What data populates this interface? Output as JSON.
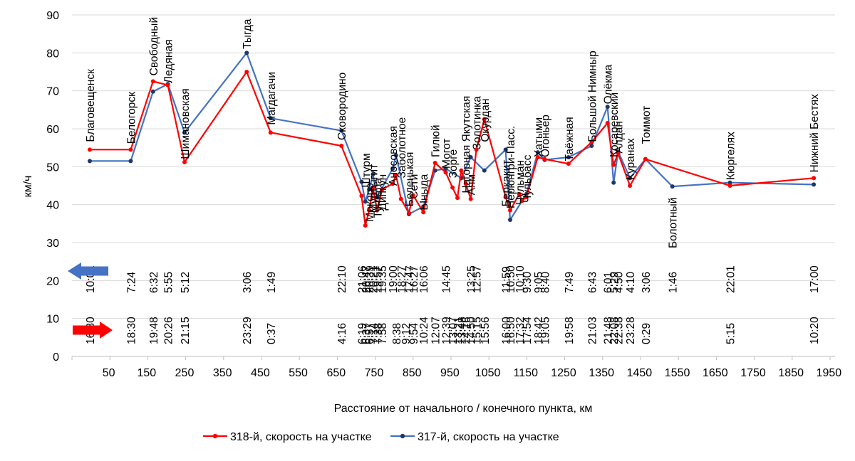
{
  "chart_data": {
    "type": "line",
    "title": "",
    "xlabel": "Расстояние от начального / конечного пункта, км",
    "ylabel": "км/ч",
    "xlim": [
      0,
      2000
    ],
    "ylim": [
      0,
      90
    ],
    "xticks": [
      50,
      150,
      250,
      350,
      450,
      550,
      650,
      750,
      850,
      950,
      1050,
      1150,
      1250,
      1350,
      1450,
      1550,
      1650,
      1750,
      1850,
      1950
    ],
    "yticks": [
      0,
      10,
      20,
      30,
      40,
      50,
      60,
      70,
      80,
      90
    ],
    "grid": "horizontal",
    "legend_position": "bottom",
    "colors": {
      "series_318": "#ff0000",
      "series_317": "#4472c4",
      "marker_317": "#1f3864",
      "grid": "#d9d9d9",
      "axis": "#bfbfbf"
    },
    "series": [
      {
        "name": "318-й, скорость на участке",
        "color": "#ff0000",
        "points": [
          [
            0,
            54.5
          ],
          [
            108,
            54.5
          ],
          [
            167,
            72.5
          ],
          [
            206,
            71.5
          ],
          [
            250,
            51.2
          ],
          [
            414,
            75
          ],
          [
            477,
            59
          ],
          [
            664,
            55.5
          ],
          [
            717,
            42.3
          ],
          [
            727,
            34.5
          ],
          [
            737,
            38.5
          ],
          [
            747,
            44.5
          ],
          [
            758,
            38.5
          ],
          [
            771,
            44
          ],
          [
            799,
            45.5
          ],
          [
            808,
            47.8
          ],
          [
            821,
            41.5
          ],
          [
            842,
            37.8
          ],
          [
            853,
            42.5
          ],
          [
            880,
            38
          ],
          [
            911,
            51
          ],
          [
            939,
            48.5
          ],
          [
            957,
            44.5
          ],
          [
            970,
            41.8
          ],
          [
            980,
            49
          ],
          [
            992,
            45.5
          ],
          [
            1005,
            41.5
          ],
          [
            1020,
            54.5
          ],
          [
            1041,
            62.5
          ],
          [
            1097,
            42
          ],
          [
            1109,
            38.5
          ],
          [
            1133,
            42.8
          ],
          [
            1140,
            41
          ],
          [
            1152,
            42
          ],
          [
            1182,
            52.5
          ],
          [
            1200,
            52
          ],
          [
            1263,
            50.8
          ],
          [
            1324,
            56.5
          ],
          [
            1366,
            61.5
          ],
          [
            1382,
            50.5
          ],
          [
            1394,
            53.5
          ],
          [
            1425,
            45
          ],
          [
            1466,
            52
          ],
          [
            1689,
            45
          ],
          [
            1910,
            47
          ]
        ]
      },
      {
        "name": "317-й, скорость на участке",
        "color": "#4472c4",
        "points": [
          [
            0,
            51.5
          ],
          [
            108,
            51.5
          ],
          [
            167,
            69.8
          ],
          [
            206,
            71.8
          ],
          [
            250,
            59
          ],
          [
            414,
            80
          ],
          [
            477,
            62.8
          ],
          [
            664,
            59.5
          ],
          [
            717,
            46
          ],
          [
            727,
            40.8
          ],
          [
            737,
            44
          ],
          [
            747,
            48
          ],
          [
            758,
            42
          ],
          [
            799,
            49.5
          ],
          [
            808,
            53
          ],
          [
            842,
            37.5
          ],
          [
            880,
            39.5
          ],
          [
            911,
            49
          ],
          [
            939,
            49.5
          ],
          [
            980,
            47
          ],
          [
            1005,
            52.5
          ],
          [
            1041,
            49
          ],
          [
            1097,
            54.5
          ],
          [
            1109,
            36
          ],
          [
            1152,
            42.8
          ],
          [
            1182,
            53.8
          ],
          [
            1200,
            51.8
          ],
          [
            1263,
            52.5
          ],
          [
            1324,
            55.5
          ],
          [
            1366,
            65.8
          ],
          [
            1382,
            45.8
          ],
          [
            1394,
            54
          ],
          [
            1425,
            47
          ],
          [
            1466,
            52
          ],
          [
            1537,
            44.8
          ],
          [
            1689,
            45.8
          ],
          [
            1910,
            45.3
          ]
        ]
      }
    ],
    "stations": [
      {
        "name": "Благовещенск",
        "x": 0,
        "y": 56.5
      },
      {
        "name": "Белогорск",
        "x": 108,
        "y": 56
      },
      {
        "name": "Свободный",
        "x": 167,
        "y": 74
      },
      {
        "name": "Ледяная",
        "x": 206,
        "y": 72
      },
      {
        "name": "Шимановская",
        "x": 250,
        "y": 52
      },
      {
        "name": "Тыгда",
        "x": 414,
        "y": 81
      },
      {
        "name": "Магдагачи",
        "x": 477,
        "y": 61
      },
      {
        "name": "Сковородино",
        "x": 664,
        "y": 57
      },
      {
        "name": "Штурм",
        "x": 727,
        "y": 44.5
      },
      {
        "name": "Мокоро",
        "x": 737,
        "y": 35.5
      },
      {
        "name": "Муртыгит",
        "x": 747,
        "y": 37.8
      },
      {
        "name": "Тунгала",
        "x": 758,
        "y": 36.5
      },
      {
        "name": "Дипкун",
        "x": 771,
        "y": 38.5
      },
      {
        "name": "Аносовская",
        "x": 799,
        "y": 45
      },
      {
        "name": "Заболотное",
        "x": 821,
        "y": 47
      },
      {
        "name": "Беленькая",
        "x": 842,
        "y": 39.5
      },
      {
        "name": "Сети",
        "x": 853,
        "y": 41.5
      },
      {
        "name": "Ыныда",
        "x": 880,
        "y": 38.5
      },
      {
        "name": "Гилюй",
        "x": 911,
        "y": 52.5
      },
      {
        "name": "Могот",
        "x": 939,
        "y": 49.5
      },
      {
        "name": "Зорге",
        "x": 957,
        "y": 47
      },
      {
        "name": "Нагорная Якутская",
        "x": 992,
        "y": 43
      },
      {
        "name": "Аям",
        "x": 1005,
        "y": 42.5
      },
      {
        "name": "Золотинка",
        "x": 1020,
        "y": 54.5
      },
      {
        "name": "Окурдан",
        "x": 1041,
        "y": 56.5
      },
      {
        "name": "Беркакит",
        "x": 1097,
        "y": 39.5
      },
      {
        "name": "Нерюнгри-Пасс.",
        "x": 1109,
        "y": 39
      },
      {
        "name": "Чульман",
        "x": 1133,
        "y": 40
      },
      {
        "name": "Чульбасс",
        "x": 1152,
        "y": 40.5
      },
      {
        "name": "Хатыми",
        "x": 1182,
        "y": 52.5
      },
      {
        "name": "Огоньер",
        "x": 1200,
        "y": 52.5
      },
      {
        "name": "Таёжная",
        "x": 1263,
        "y": 51.5
      },
      {
        "name": "Большой Нимныр",
        "x": 1324,
        "y": 56.5
      },
      {
        "name": "Олёкма",
        "x": 1366,
        "y": 66.5
      },
      {
        "name": "Косаревский",
        "x": 1382,
        "y": 52.5
      },
      {
        "name": "Алдан",
        "x": 1394,
        "y": 53.5
      },
      {
        "name": "Куранах",
        "x": 1425,
        "y": 46.5
      },
      {
        "name": "Томмот",
        "x": 1466,
        "y": 56
      },
      {
        "name": "Болотный",
        "x": 1537,
        "y": 28.5
      },
      {
        "name": "Кюргелях",
        "x": 1689,
        "y": 46.5
      },
      {
        "name": "Нижний Бестях",
        "x": 1910,
        "y": 48.5
      }
    ],
    "times_317": [
      {
        "t": "10:01",
        "x": 0
      },
      {
        "t": "7:24",
        "x": 108
      },
      {
        "t": "6:32",
        "x": 167
      },
      {
        "t": "5:55",
        "x": 206
      },
      {
        "t": "5:12",
        "x": 250
      },
      {
        "t": "3:06",
        "x": 414
      },
      {
        "t": "1:49",
        "x": 477
      },
      {
        "t": "22:10",
        "x": 664
      },
      {
        "t": "21:06",
        "x": 717
      },
      {
        "t": "20:47",
        "x": 727
      },
      {
        "t": "20:39",
        "x": 737
      },
      {
        "t": "20:21",
        "x": 747
      },
      {
        "t": "19:57",
        "x": 758
      },
      {
        "t": "19:35",
        "x": 771
      },
      {
        "t": "19:00",
        "x": 799
      },
      {
        "t": "18:27",
        "x": 821
      },
      {
        "t": "17:47",
        "x": 842
      },
      {
        "t": "16:27",
        "x": 853
      },
      {
        "t": "16:06",
        "x": 880
      },
      {
        "t": "14:45",
        "x": 939
      },
      {
        "t": "13:25",
        "x": 1005
      },
      {
        "t": "12:57",
        "x": 1020
      },
      {
        "t": "11:59",
        "x": 1097
      },
      {
        "t": "10:50",
        "x": 1109
      },
      {
        "t": "10:10",
        "x": 1133
      },
      {
        "t": "9:30",
        "x": 1152
      },
      {
        "t": "9:05",
        "x": 1182
      },
      {
        "t": "8:40",
        "x": 1200
      },
      {
        "t": "7:49",
        "x": 1263
      },
      {
        "t": "6:43",
        "x": 1324
      },
      {
        "t": "6:01",
        "x": 1366
      },
      {
        "t": "5:29",
        "x": 1382
      },
      {
        "t": "4:50",
        "x": 1394
      },
      {
        "t": "4:10",
        "x": 1425
      },
      {
        "t": "3:06",
        "x": 1466
      },
      {
        "t": "1:46",
        "x": 1537
      },
      {
        "t": "22:01",
        "x": 1689
      },
      {
        "t": "17:00",
        "x": 1910
      }
    ],
    "times_318": [
      {
        "t": "16:30",
        "x": 0
      },
      {
        "t": "18:30",
        "x": 108
      },
      {
        "t": "19:48",
        "x": 167
      },
      {
        "t": "20:26",
        "x": 206
      },
      {
        "t": "21:15",
        "x": 250
      },
      {
        "t": "23:29",
        "x": 414
      },
      {
        "t": "0:37",
        "x": 477
      },
      {
        "t": "4:16",
        "x": 664
      },
      {
        "t": "6:19",
        "x": 717
      },
      {
        "t": "6:37",
        "x": 727
      },
      {
        "t": "6:57",
        "x": 737
      },
      {
        "t": "7:14",
        "x": 747
      },
      {
        "t": "7:38",
        "x": 758
      },
      {
        "t": "7:58",
        "x": 771
      },
      {
        "t": "8:38",
        "x": 808
      },
      {
        "t": "9:12",
        "x": 833
      },
      {
        "t": "9:54",
        "x": 853
      },
      {
        "t": "10:24",
        "x": 880
      },
      {
        "t": "12:07",
        "x": 911
      },
      {
        "t": "12:39",
        "x": 939
      },
      {
        "t": "13:07",
        "x": 957
      },
      {
        "t": "13:21",
        "x": 970
      },
      {
        "t": "13:48",
        "x": 980
      },
      {
        "t": "14:16",
        "x": 992
      },
      {
        "t": "14:50",
        "x": 1005
      },
      {
        "t": "15:15",
        "x": 1020
      },
      {
        "t": "15:56",
        "x": 1041
      },
      {
        "t": "16:00",
        "x": 1097
      },
      {
        "t": "16:50",
        "x": 1109
      },
      {
        "t": "17:32",
        "x": 1133
      },
      {
        "t": "17:54",
        "x": 1152
      },
      {
        "t": "18:42",
        "x": 1182
      },
      {
        "t": "19:05",
        "x": 1200
      },
      {
        "t": "19:58",
        "x": 1263
      },
      {
        "t": "21:03",
        "x": 1324
      },
      {
        "t": "21:48",
        "x": 1366
      },
      {
        "t": "22:08",
        "x": 1382
      },
      {
        "t": "22:38",
        "x": 1394
      },
      {
        "t": "23:28",
        "x": 1425
      },
      {
        "t": "0:29",
        "x": 1466
      },
      {
        "t": "5:15",
        "x": 1689
      },
      {
        "t": "10:20",
        "x": 1910
      }
    ]
  }
}
